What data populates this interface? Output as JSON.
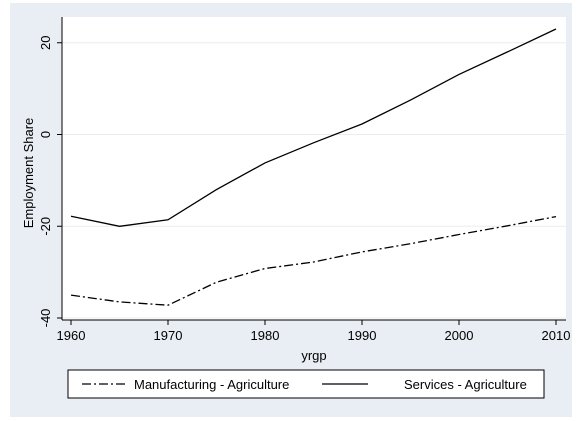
{
  "chart_data": {
    "type": "line",
    "title": "",
    "xlabel": "yrgp",
    "ylabel": "Employment Share",
    "x": [
      1960,
      1965,
      1970,
      1975,
      1980,
      1985,
      1990,
      1995,
      2000,
      2005,
      2010
    ],
    "xlim": [
      1960,
      2010
    ],
    "ylim": [
      -40,
      23
    ],
    "xticks": [
      1960,
      1970,
      1980,
      1990,
      2000,
      2010
    ],
    "yticks": [
      -40,
      -20,
      0,
      20
    ],
    "grid": true,
    "legend_position": "bottom",
    "series": [
      {
        "name": "Manufacturing - Agriculture",
        "style": "dash-dot",
        "color": "#000000",
        "values": [
          -35.0,
          -36.5,
          -37.2,
          -32.2,
          -29.2,
          -27.8,
          -25.6,
          -23.8,
          -21.8,
          -19.9,
          -17.9
        ]
      },
      {
        "name": "Services - Agriculture",
        "style": "solid",
        "color": "#000000",
        "values": [
          -17.8,
          -20.0,
          -18.6,
          -12.0,
          -6.2,
          -1.8,
          2.3,
          7.5,
          13.1,
          18.0,
          23.0
        ]
      }
    ]
  }
}
